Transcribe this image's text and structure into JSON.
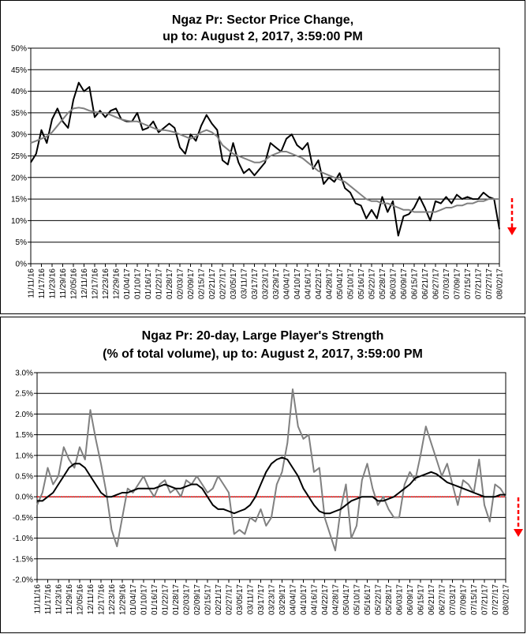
{
  "chart_data": [
    {
      "type": "line",
      "title_lines": [
        "Ngaz Pr: Sector Price Change,",
        "up to: August 2, 2017, 3:59:00 PM"
      ],
      "y_ticks": [
        "0%",
        "5%",
        "10%",
        "15%",
        "20%",
        "25%",
        "30%",
        "35%",
        "40%",
        "45%",
        "50%"
      ],
      "ylim": [
        0,
        50
      ],
      "x_labels": [
        "11/11/16",
        "11/17/16",
        "11/23/16",
        "11/29/16",
        "12/05/16",
        "12/11/16",
        "12/17/16",
        "12/23/16",
        "12/29/16",
        "01/04/17",
        "01/10/17",
        "01/16/17",
        "01/22/17",
        "01/28/17",
        "02/03/17",
        "02/09/17",
        "02/15/17",
        "02/21/17",
        "02/27/17",
        "03/05/17",
        "03/11/17",
        "03/17/17",
        "03/23/17",
        "03/29/17",
        "04/04/17",
        "04/10/17",
        "04/16/17",
        "04/22/17",
        "04/28/17",
        "05/04/17",
        "05/10/17",
        "05/16/17",
        "05/22/17",
        "05/28/17",
        "06/03/17",
        "06/09/17",
        "06/15/17",
        "06/21/17",
        "06/27/17",
        "07/03/17",
        "07/09/17",
        "07/15/17",
        "07/21/17",
        "07/27/17",
        "08/02/17"
      ],
      "grid": true,
      "series": [
        {
          "color": "#000000",
          "values": [
            23.5,
            25.5,
            31.0,
            28.0,
            33.5,
            36.0,
            33.0,
            31.5,
            38.0,
            42.0,
            40.0,
            41.0,
            34.0,
            35.5,
            34.0,
            35.5,
            36.0,
            33.5,
            33.0,
            33.0,
            35.0,
            31.0,
            31.5,
            33.0,
            30.5,
            31.5,
            32.5,
            31.5,
            27.0,
            25.5,
            30.0,
            28.5,
            32.0,
            34.5,
            32.5,
            31.0,
            24.0,
            23.0,
            28.0,
            23.5,
            21.0,
            22.0,
            20.5,
            22.0,
            23.5,
            28.0,
            27.0,
            26.0,
            29.0,
            30.0,
            27.5,
            26.5,
            28.0,
            22.0,
            24.0,
            18.5,
            20.0,
            19.0,
            21.0,
            17.5,
            16.5,
            14.0,
            13.5,
            10.5,
            12.5,
            10.5,
            15.5,
            12.0,
            14.5,
            6.5,
            11.0,
            11.5,
            13.0,
            15.5,
            13.0,
            10.0,
            14.5,
            14.0,
            15.5,
            14.0,
            16.0,
            15.0,
            15.5,
            15.0,
            15.0,
            16.5,
            15.5,
            15.0,
            8.0
          ]
        },
        {
          "color": "#808080",
          "values": [
            28.0,
            28.5,
            29.0,
            29.5,
            30.5,
            32.0,
            33.5,
            35.0,
            36.0,
            36.2,
            36.0,
            35.5,
            35.2,
            35.0,
            35.0,
            34.5,
            34.0,
            33.5,
            33.2,
            33.0,
            33.0,
            32.5,
            32.0,
            31.5,
            31.0,
            31.0,
            30.8,
            30.5,
            30.0,
            29.5,
            29.0,
            29.5,
            30.5,
            31.0,
            30.5,
            29.5,
            27.5,
            26.5,
            25.5,
            25.0,
            24.5,
            24.0,
            23.5,
            23.5,
            24.0,
            25.0,
            25.5,
            26.0,
            26.0,
            25.5,
            25.0,
            24.5,
            23.5,
            22.5,
            21.5,
            21.0,
            20.5,
            20.0,
            19.5,
            19.0,
            18.0,
            17.0,
            16.0,
            15.0,
            14.5,
            14.5,
            14.0,
            14.0,
            13.5,
            13.0,
            12.5,
            12.5,
            12.0,
            12.0,
            12.0,
            12.0,
            12.0,
            12.5,
            13.0,
            13.0,
            13.5,
            13.5,
            14.0,
            14.0,
            14.5,
            14.5,
            15.0,
            15.0,
            15.0
          ]
        }
      ],
      "annotation": {
        "type": "down-arrow",
        "color": "#ff0000"
      }
    },
    {
      "type": "line",
      "title_lines": [
        "Ngaz Pr: 20-day, Large Player's Strength",
        "(% of total volume), up to: August 2, 2017, 3:59:00 PM"
      ],
      "y_ticks": [
        "-2.0%",
        "-1.5%",
        "-1.0%",
        "-0.5%",
        "0.0%",
        "0.5%",
        "1.0%",
        "1.5%",
        "2.0%",
        "2.5%",
        "3.0%"
      ],
      "ylim": [
        -2.0,
        3.0
      ],
      "x_labels": [
        "11/11/16",
        "11/17/16",
        "11/23/16",
        "11/29/16",
        "12/05/16",
        "12/11/16",
        "12/17/16",
        "12/23/16",
        "12/29/16",
        "01/04/17",
        "01/10/17",
        "01/16/17",
        "01/22/17",
        "01/28/17",
        "02/03/17",
        "02/09/17",
        "02/15/17",
        "02/21/17",
        "02/27/17",
        "03/05/17",
        "03/11/17",
        "03/17/17",
        "03/23/17",
        "03/29/17",
        "04/04/17",
        "04/10/17",
        "04/16/17",
        "04/22/17",
        "04/28/17",
        "05/04/17",
        "05/10/17",
        "05/16/17",
        "05/22/17",
        "05/28/17",
        "06/03/17",
        "06/09/17",
        "06/15/17",
        "06/21/17",
        "06/27/17",
        "07/03/17",
        "07/09/17",
        "07/15/17",
        "07/21/17",
        "07/27/17",
        "08/02/17"
      ],
      "grid": true,
      "reference_line": {
        "y": 0.0,
        "color": "#ff0000",
        "style": "dotted"
      },
      "series": [
        {
          "color": "#808080",
          "values": [
            -0.2,
            0.1,
            0.7,
            0.3,
            0.5,
            1.2,
            0.9,
            0.7,
            1.2,
            0.9,
            2.1,
            1.4,
            0.8,
            0.1,
            -0.8,
            -1.2,
            -0.5,
            0.2,
            0.1,
            0.3,
            0.5,
            0.2,
            0.0,
            0.3,
            0.4,
            0.1,
            0.2,
            0.0,
            0.4,
            0.3,
            0.5,
            0.3,
            0.1,
            0.2,
            0.5,
            0.3,
            0.1,
            -0.9,
            -0.8,
            -0.9,
            -0.5,
            -0.6,
            -0.3,
            -0.7,
            -0.5,
            0.3,
            0.6,
            1.3,
            2.6,
            1.7,
            1.4,
            1.5,
            0.6,
            0.7,
            -0.5,
            -0.9,
            -1.3,
            -0.3,
            0.3,
            -1.0,
            -0.7,
            0.4,
            0.8,
            0.2,
            -0.2,
            0.0,
            -0.3,
            -0.5,
            -0.5,
            0.3,
            0.6,
            0.4,
            1.0,
            1.7,
            1.3,
            0.9,
            0.5,
            0.8,
            0.3,
            -0.2,
            0.4,
            0.3,
            0.1,
            0.9,
            -0.2,
            -0.6,
            0.3,
            0.2,
            0.0
          ]
        },
        {
          "color": "#000000",
          "values": [
            -0.1,
            -0.1,
            0.0,
            0.1,
            0.3,
            0.5,
            0.7,
            0.8,
            0.8,
            0.7,
            0.5,
            0.3,
            0.1,
            0.0,
            0.0,
            0.05,
            0.1,
            0.1,
            0.15,
            0.2,
            0.2,
            0.2,
            0.2,
            0.25,
            0.3,
            0.25,
            0.2,
            0.2,
            0.25,
            0.3,
            0.3,
            0.2,
            0.0,
            -0.2,
            -0.3,
            -0.3,
            -0.35,
            -0.4,
            -0.35,
            -0.3,
            -0.2,
            0.0,
            0.3,
            0.6,
            0.8,
            0.9,
            0.95,
            0.9,
            0.7,
            0.5,
            0.2,
            0.0,
            -0.2,
            -0.35,
            -0.4,
            -0.4,
            -0.35,
            -0.3,
            -0.2,
            -0.1,
            -0.05,
            0.0,
            0.0,
            0.0,
            -0.1,
            -0.1,
            -0.05,
            0.0,
            0.1,
            0.2,
            0.3,
            0.45,
            0.5,
            0.55,
            0.6,
            0.55,
            0.45,
            0.35,
            0.3,
            0.25,
            0.2,
            0.15,
            0.1,
            0.05,
            0.0,
            0.0,
            0.0,
            0.05,
            0.05
          ]
        }
      ],
      "annotation": {
        "type": "down-arrow",
        "color": "#ff0000"
      }
    }
  ]
}
